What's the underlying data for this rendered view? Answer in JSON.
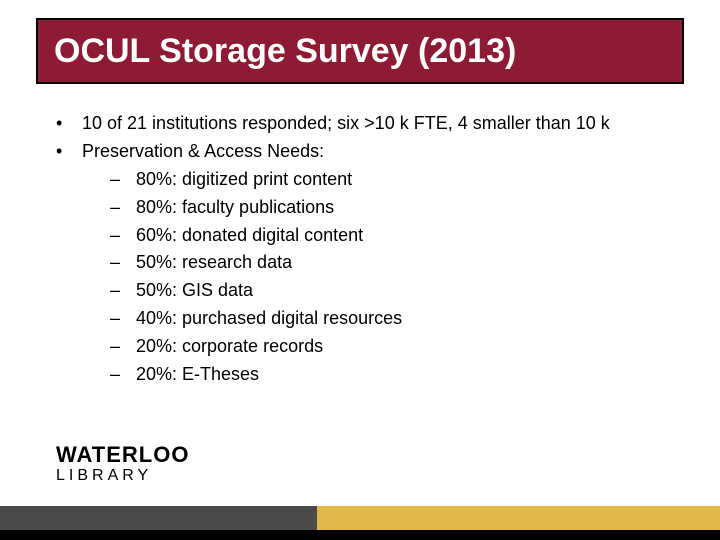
{
  "title": "OCUL Storage Survey (2013)",
  "bullets": [
    "10 of 21 institutions responded; six >10 k FTE, 4 smaller than 10 k",
    "Preservation & Access Needs:"
  ],
  "subitems": [
    "80%: digitized print content",
    "80%: faculty publications",
    "60%: donated digital content",
    "50%: research data",
    "50%: GIS data",
    "40%: purchased digital resources",
    "20%: corporate records",
    "20%: E-Theses"
  ],
  "logo": {
    "line1": "WATERLOO",
    "line2": "LIBRARY"
  },
  "colors": {
    "title_bg": "#8d1b34",
    "title_border": "#000000",
    "title_text": "#ffffff",
    "body_text": "#000000",
    "stripe_dark": "#4a4a4a",
    "stripe_gold": "#e0b84b",
    "background": "#ffffff"
  },
  "typography": {
    "title_fontsize": 34,
    "body_fontsize": 18,
    "logo_top_fontsize": 22,
    "logo_bottom_fontsize": 16
  }
}
